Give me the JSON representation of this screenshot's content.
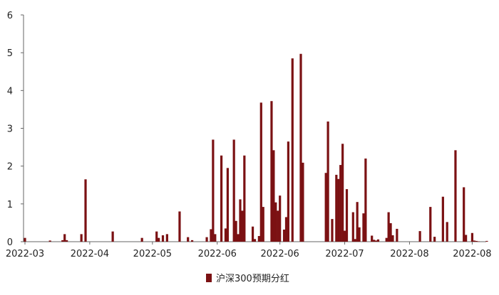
{
  "chart_data": {
    "type": "bar",
    "title": "",
    "xlabel": "",
    "ylabel": "",
    "ylim": [
      0,
      6
    ],
    "yticks": [
      "0",
      "1",
      "2",
      "3",
      "4",
      "5",
      "6"
    ],
    "xticks": [
      {
        "label": "2022-03",
        "day": 0
      },
      {
        "label": "2022-04",
        "day": 31
      },
      {
        "label": "2022-05",
        "day": 61
      },
      {
        "label": "2022-06",
        "day": 92
      },
      {
        "label": "2022-06",
        "day": 122
      },
      {
        "label": "2022-07",
        "day": 153
      },
      {
        "label": "2022-08",
        "day": 184
      },
      {
        "label": "2022-08",
        "day": 214
      }
    ],
    "xdays": [
      0,
      12,
      18,
      19,
      20,
      27,
      29,
      42,
      56,
      63,
      64,
      66,
      68,
      74,
      78,
      80,
      87,
      89,
      90,
      91,
      94,
      96,
      97,
      100,
      101,
      102,
      103,
      104,
      105,
      109,
      110,
      112,
      113,
      114,
      118,
      119,
      120,
      121,
      122,
      124,
      125,
      126,
      128,
      132,
      133,
      144,
      145,
      147,
      149,
      150,
      151,
      152,
      153,
      154,
      157,
      158,
      159,
      160,
      162,
      163,
      166,
      167,
      168,
      169,
      173,
      174,
      175,
      176,
      178,
      189,
      194,
      196,
      200,
      202,
      206,
      210,
      211,
      214,
      215,
      216,
      217,
      221
    ],
    "series": [
      {
        "name": "沪深300预期分红",
        "color": "#7b1113",
        "values": [
          0.1,
          0.03,
          0.04,
          0.2,
          0.04,
          0.2,
          1.65,
          0.27,
          0.1,
          0.27,
          0.1,
          0.17,
          0.2,
          0.8,
          0.12,
          0.04,
          0.12,
          0.33,
          2.7,
          0.2,
          2.28,
          0.35,
          1.95,
          2.7,
          0.55,
          0.2,
          1.12,
          0.82,
          2.28,
          0.4,
          0.07,
          0.15,
          3.68,
          0.92,
          3.72,
          2.42,
          1.04,
          0.82,
          1.22,
          0.32,
          0.65,
          2.65,
          4.85,
          4.97,
          2.09,
          1.82,
          3.18,
          0.6,
          1.77,
          1.66,
          2.03,
          2.59,
          0.29,
          1.39,
          0.78,
          0.07,
          1.05,
          0.38,
          0.75,
          2.2,
          0.16,
          0.05,
          0.03,
          0.06,
          0.1,
          0.78,
          0.49,
          0.17,
          0.34,
          0.28,
          0.92,
          0.13,
          1.19,
          0.52,
          2.42,
          1.44,
          0.18,
          0.23,
          0.03,
          0.02,
          0.01,
          0.02
        ]
      }
    ],
    "legend": {
      "position": "bottom",
      "label": "沪深300预期分红"
    }
  }
}
